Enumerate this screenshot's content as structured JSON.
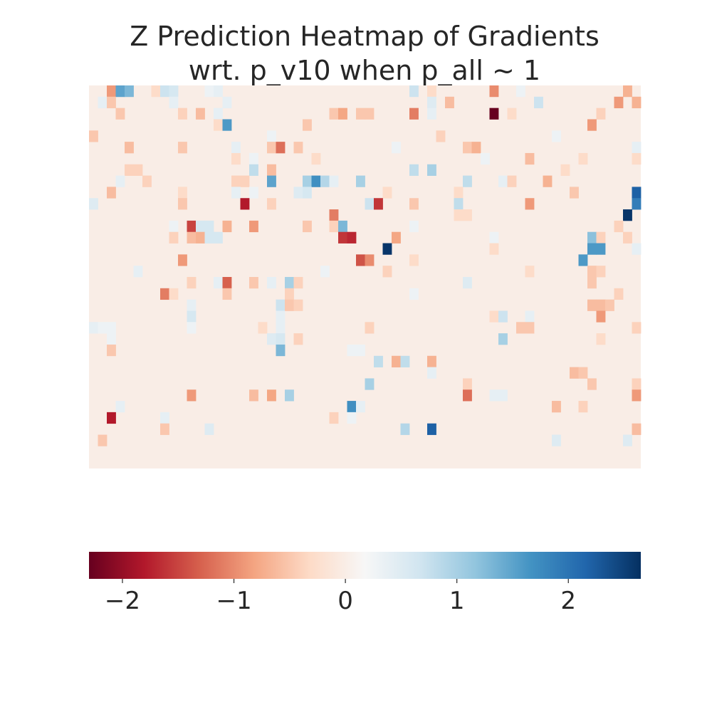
{
  "chart_data": {
    "type": "heatmap",
    "title": "Z Prediction Heatmap of Gradients\nwrt. p_v10 when p_all ~ 1",
    "title_lines": [
      "Z Prediction Heatmap of Gradients",
      "wrt. p_v10 when p_all ~ 1"
    ],
    "rows": 34,
    "cols": 62,
    "colormap": "RdBu",
    "vmin": -2.3,
    "vmax": 2.65,
    "colorbar": {
      "orientation": "horizontal",
      "location": "bottom",
      "ticks": [
        -2,
        -1,
        0,
        1,
        2
      ],
      "tick_labels": [
        "−2",
        "−1",
        "0",
        "1",
        "2"
      ]
    },
    "axis_ticks_visible": false,
    "cells": [
      {
        "r": 0,
        "c": 2,
        "v": -0.9
      },
      {
        "r": 0,
        "c": 3,
        "v": 1.5
      },
      {
        "r": 0,
        "c": 4,
        "v": 1.3
      },
      {
        "r": 0,
        "c": 7,
        "v": -0.3
      },
      {
        "r": 0,
        "c": 8,
        "v": 0.7
      },
      {
        "r": 0,
        "c": 9,
        "v": 0.6
      },
      {
        "r": 0,
        "c": 13,
        "v": 0.3
      },
      {
        "r": 0,
        "c": 14,
        "v": 0.4
      },
      {
        "r": 0,
        "c": 36,
        "v": 0.7
      },
      {
        "r": 0,
        "c": 38,
        "v": -0.3
      },
      {
        "r": 0,
        "c": 45,
        "v": -1.0
      },
      {
        "r": 0,
        "c": 48,
        "v": 0.3
      },
      {
        "r": 0,
        "c": 60,
        "v": -0.7
      },
      {
        "r": 1,
        "c": 1,
        "v": 0.4
      },
      {
        "r": 1,
        "c": 2,
        "v": -0.5
      },
      {
        "r": 1,
        "c": 9,
        "v": 0.4
      },
      {
        "r": 1,
        "c": 15,
        "v": 0.4
      },
      {
        "r": 1,
        "c": 38,
        "v": 0.5
      },
      {
        "r": 1,
        "c": 40,
        "v": -0.6
      },
      {
        "r": 1,
        "c": 50,
        "v": 0.7
      },
      {
        "r": 1,
        "c": 59,
        "v": -0.9
      },
      {
        "r": 1,
        "c": 61,
        "v": -0.7
      },
      {
        "r": 2,
        "c": 3,
        "v": -0.5
      },
      {
        "r": 2,
        "c": 10,
        "v": -0.4
      },
      {
        "r": 2,
        "c": 12,
        "v": -0.6
      },
      {
        "r": 2,
        "c": 14,
        "v": 0.4
      },
      {
        "r": 2,
        "c": 27,
        "v": -0.5
      },
      {
        "r": 2,
        "c": 28,
        "v": -0.8
      },
      {
        "r": 2,
        "c": 30,
        "v": -0.5
      },
      {
        "r": 2,
        "c": 31,
        "v": -0.5
      },
      {
        "r": 2,
        "c": 36,
        "v": -1.1
      },
      {
        "r": 2,
        "c": 38,
        "v": 0.4
      },
      {
        "r": 2,
        "c": 45,
        "v": -2.3
      },
      {
        "r": 2,
        "c": 47,
        "v": -0.3
      },
      {
        "r": 2,
        "c": 57,
        "v": -0.4
      },
      {
        "r": 3,
        "c": 14,
        "v": -0.3
      },
      {
        "r": 3,
        "c": 15,
        "v": 1.6
      },
      {
        "r": 3,
        "c": 24,
        "v": -0.5
      },
      {
        "r": 3,
        "c": 56,
        "v": -0.9
      },
      {
        "r": 4,
        "c": 0,
        "v": -0.5
      },
      {
        "r": 4,
        "c": 20,
        "v": 0.3
      },
      {
        "r": 4,
        "c": 39,
        "v": -0.4
      },
      {
        "r": 4,
        "c": 52,
        "v": 0.3
      },
      {
        "r": 5,
        "c": 4,
        "v": -0.6
      },
      {
        "r": 5,
        "c": 10,
        "v": -0.5
      },
      {
        "r": 5,
        "c": 16,
        "v": 0.4
      },
      {
        "r": 5,
        "c": 20,
        "v": -0.5
      },
      {
        "r": 5,
        "c": 21,
        "v": -1.2
      },
      {
        "r": 5,
        "c": 23,
        "v": -0.5
      },
      {
        "r": 5,
        "c": 34,
        "v": 0.3
      },
      {
        "r": 5,
        "c": 42,
        "v": -0.5
      },
      {
        "r": 5,
        "c": 43,
        "v": -0.7
      },
      {
        "r": 5,
        "c": 61,
        "v": 0.4
      },
      {
        "r": 6,
        "c": 16,
        "v": -0.3
      },
      {
        "r": 6,
        "c": 18,
        "v": 0.3
      },
      {
        "r": 6,
        "c": 25,
        "v": -0.3
      },
      {
        "r": 6,
        "c": 44,
        "v": 0.3
      },
      {
        "r": 6,
        "c": 49,
        "v": -0.6
      },
      {
        "r": 6,
        "c": 55,
        "v": -0.3
      },
      {
        "r": 6,
        "c": 61,
        "v": -0.3
      },
      {
        "r": 7,
        "c": 4,
        "v": -0.4
      },
      {
        "r": 7,
        "c": 5,
        "v": -0.4
      },
      {
        "r": 7,
        "c": 18,
        "v": 0.8
      },
      {
        "r": 7,
        "c": 20,
        "v": -0.6
      },
      {
        "r": 7,
        "c": 36,
        "v": 0.8
      },
      {
        "r": 7,
        "c": 38,
        "v": 1.0
      },
      {
        "r": 7,
        "c": 53,
        "v": -0.3
      },
      {
        "r": 8,
        "c": 3,
        "v": 0.4
      },
      {
        "r": 8,
        "c": 6,
        "v": -0.4
      },
      {
        "r": 8,
        "c": 16,
        "v": -0.4
      },
      {
        "r": 8,
        "c": 17,
        "v": -0.4
      },
      {
        "r": 8,
        "c": 20,
        "v": 1.5
      },
      {
        "r": 8,
        "c": 24,
        "v": 1.0
      },
      {
        "r": 8,
        "c": 25,
        "v": 1.7
      },
      {
        "r": 8,
        "c": 26,
        "v": 0.9
      },
      {
        "r": 8,
        "c": 27,
        "v": 0.4
      },
      {
        "r": 8,
        "c": 30,
        "v": 1.0
      },
      {
        "r": 8,
        "c": 42,
        "v": 0.8
      },
      {
        "r": 8,
        "c": 46,
        "v": 0.4
      },
      {
        "r": 8,
        "c": 47,
        "v": -0.4
      },
      {
        "r": 8,
        "c": 51,
        "v": -0.7
      },
      {
        "r": 9,
        "c": 2,
        "v": -0.6
      },
      {
        "r": 9,
        "c": 10,
        "v": -0.3
      },
      {
        "r": 9,
        "c": 16,
        "v": 0.4
      },
      {
        "r": 9,
        "c": 18,
        "v": 0.3
      },
      {
        "r": 9,
        "c": 23,
        "v": 0.5
      },
      {
        "r": 9,
        "c": 24,
        "v": 0.6
      },
      {
        "r": 9,
        "c": 33,
        "v": -0.3
      },
      {
        "r": 9,
        "c": 41,
        "v": -0.3
      },
      {
        "r": 9,
        "c": 54,
        "v": -0.5
      },
      {
        "r": 9,
        "c": 61,
        "v": 2.2
      },
      {
        "r": 10,
        "c": 0,
        "v": 0.5
      },
      {
        "r": 10,
        "c": 10,
        "v": -0.5
      },
      {
        "r": 10,
        "c": 17,
        "v": -1.8
      },
      {
        "r": 10,
        "c": 20,
        "v": -0.4
      },
      {
        "r": 10,
        "c": 31,
        "v": 0.7
      },
      {
        "r": 10,
        "c": 32,
        "v": -1.6
      },
      {
        "r": 10,
        "c": 36,
        "v": -0.5
      },
      {
        "r": 10,
        "c": 41,
        "v": 0.8
      },
      {
        "r": 10,
        "c": 49,
        "v": -0.9
      },
      {
        "r": 10,
        "c": 61,
        "v": 1.9
      },
      {
        "r": 11,
        "c": 27,
        "v": -1.1
      },
      {
        "r": 11,
        "c": 41,
        "v": -0.3
      },
      {
        "r": 11,
        "c": 42,
        "v": -0.3
      },
      {
        "r": 11,
        "c": 60,
        "v": 2.6
      },
      {
        "r": 12,
        "c": 9,
        "v": 0.3
      },
      {
        "r": 12,
        "c": 11,
        "v": -1.5
      },
      {
        "r": 12,
        "c": 12,
        "v": 0.6
      },
      {
        "r": 12,
        "c": 13,
        "v": 0.6
      },
      {
        "r": 12,
        "c": 15,
        "v": -0.7
      },
      {
        "r": 12,
        "c": 18,
        "v": -0.9
      },
      {
        "r": 12,
        "c": 24,
        "v": -0.5
      },
      {
        "r": 12,
        "c": 27,
        "v": -0.4
      },
      {
        "r": 12,
        "c": 28,
        "v": 1.3
      },
      {
        "r": 12,
        "c": 36,
        "v": 0.3
      },
      {
        "r": 12,
        "c": 59,
        "v": -0.4
      },
      {
        "r": 13,
        "c": 9,
        "v": -0.4
      },
      {
        "r": 13,
        "c": 11,
        "v": -0.6
      },
      {
        "r": 13,
        "c": 12,
        "v": -0.7
      },
      {
        "r": 13,
        "c": 13,
        "v": 0.6
      },
      {
        "r": 13,
        "c": 14,
        "v": 0.6
      },
      {
        "r": 13,
        "c": 28,
        "v": -1.6
      },
      {
        "r": 13,
        "c": 29,
        "v": -1.7
      },
      {
        "r": 13,
        "c": 34,
        "v": -0.8
      },
      {
        "r": 13,
        "c": 45,
        "v": 0.3
      },
      {
        "r": 13,
        "c": 56,
        "v": 1.2
      },
      {
        "r": 13,
        "c": 57,
        "v": -0.4
      },
      {
        "r": 13,
        "c": 60,
        "v": -0.4
      },
      {
        "r": 14,
        "c": 33,
        "v": 2.6
      },
      {
        "r": 14,
        "c": 45,
        "v": -0.3
      },
      {
        "r": 14,
        "c": 56,
        "v": 1.6
      },
      {
        "r": 14,
        "c": 57,
        "v": 1.6
      },
      {
        "r": 14,
        "c": 61,
        "v": 0.4
      },
      {
        "r": 15,
        "c": 10,
        "v": -0.9
      },
      {
        "r": 15,
        "c": 30,
        "v": -1.4
      },
      {
        "r": 15,
        "c": 31,
        "v": -1.0
      },
      {
        "r": 15,
        "c": 36,
        "v": -0.3
      },
      {
        "r": 15,
        "c": 55,
        "v": 1.6
      },
      {
        "r": 16,
        "c": 5,
        "v": 0.4
      },
      {
        "r": 16,
        "c": 26,
        "v": 0.3
      },
      {
        "r": 16,
        "c": 33,
        "v": -0.4
      },
      {
        "r": 16,
        "c": 49,
        "v": -0.3
      },
      {
        "r": 16,
        "c": 56,
        "v": -0.5
      },
      {
        "r": 16,
        "c": 57,
        "v": -0.4
      },
      {
        "r": 17,
        "c": 11,
        "v": -0.4
      },
      {
        "r": 17,
        "c": 14,
        "v": 0.4
      },
      {
        "r": 17,
        "c": 15,
        "v": -1.3
      },
      {
        "r": 17,
        "c": 18,
        "v": -0.5
      },
      {
        "r": 17,
        "c": 20,
        "v": 0.4
      },
      {
        "r": 17,
        "c": 22,
        "v": 1.0
      },
      {
        "r": 17,
        "c": 23,
        "v": -0.4
      },
      {
        "r": 17,
        "c": 42,
        "v": 0.5
      },
      {
        "r": 17,
        "c": 56,
        "v": -0.5
      },
      {
        "r": 18,
        "c": 8,
        "v": -1.1
      },
      {
        "r": 18,
        "c": 9,
        "v": -0.3
      },
      {
        "r": 18,
        "c": 15,
        "v": -0.5
      },
      {
        "r": 18,
        "c": 22,
        "v": -0.4
      },
      {
        "r": 18,
        "c": 36,
        "v": 0.3
      },
      {
        "r": 18,
        "c": 59,
        "v": -0.4
      },
      {
        "r": 19,
        "c": 11,
        "v": 0.4
      },
      {
        "r": 19,
        "c": 21,
        "v": 0.7
      },
      {
        "r": 19,
        "c": 22,
        "v": -0.5
      },
      {
        "r": 19,
        "c": 23,
        "v": -0.4
      },
      {
        "r": 19,
        "c": 56,
        "v": -0.6
      },
      {
        "r": 19,
        "c": 57,
        "v": -0.6
      },
      {
        "r": 19,
        "c": 58,
        "v": -0.5
      },
      {
        "r": 20,
        "c": 11,
        "v": 0.6
      },
      {
        "r": 20,
        "c": 21,
        "v": 0.4
      },
      {
        "r": 20,
        "c": 45,
        "v": -0.3
      },
      {
        "r": 20,
        "c": 46,
        "v": 0.7
      },
      {
        "r": 20,
        "c": 49,
        "v": 0.4
      },
      {
        "r": 20,
        "c": 57,
        "v": -0.9
      },
      {
        "r": 21,
        "c": 0,
        "v": 0.4
      },
      {
        "r": 21,
        "c": 1,
        "v": 0.3
      },
      {
        "r": 21,
        "c": 2,
        "v": 0.3
      },
      {
        "r": 21,
        "c": 11,
        "v": 0.3
      },
      {
        "r": 21,
        "c": 19,
        "v": -0.3
      },
      {
        "r": 21,
        "c": 21,
        "v": 0.4
      },
      {
        "r": 21,
        "c": 31,
        "v": -0.4
      },
      {
        "r": 21,
        "c": 48,
        "v": -0.5
      },
      {
        "r": 21,
        "c": 49,
        "v": -0.5
      },
      {
        "r": 21,
        "c": 61,
        "v": -0.4
      },
      {
        "r": 22,
        "c": 2,
        "v": 0.3
      },
      {
        "r": 22,
        "c": 20,
        "v": 0.5
      },
      {
        "r": 22,
        "c": 21,
        "v": 0.6
      },
      {
        "r": 22,
        "c": 23,
        "v": -0.4
      },
      {
        "r": 22,
        "c": 46,
        "v": 1.0
      },
      {
        "r": 22,
        "c": 57,
        "v": -0.3
      },
      {
        "r": 23,
        "c": 2,
        "v": -0.5
      },
      {
        "r": 23,
        "c": 21,
        "v": 1.3
      },
      {
        "r": 23,
        "c": 29,
        "v": 0.3
      },
      {
        "r": 23,
        "c": 30,
        "v": 0.3
      },
      {
        "r": 24,
        "c": 32,
        "v": 0.8
      },
      {
        "r": 24,
        "c": 34,
        "v": -0.7
      },
      {
        "r": 24,
        "c": 35,
        "v": 0.8
      },
      {
        "r": 24,
        "c": 38,
        "v": -0.7
      },
      {
        "r": 25,
        "c": 38,
        "v": 0.4
      },
      {
        "r": 25,
        "c": 54,
        "v": -0.6
      },
      {
        "r": 25,
        "c": 55,
        "v": -0.5
      },
      {
        "r": 26,
        "c": 31,
        "v": 1.0
      },
      {
        "r": 26,
        "c": 42,
        "v": -0.4
      },
      {
        "r": 26,
        "c": 56,
        "v": -0.5
      },
      {
        "r": 26,
        "c": 61,
        "v": -0.4
      },
      {
        "r": 27,
        "c": 11,
        "v": -0.9
      },
      {
        "r": 27,
        "c": 18,
        "v": -0.6
      },
      {
        "r": 27,
        "c": 20,
        "v": -0.8
      },
      {
        "r": 27,
        "c": 22,
        "v": 1.0
      },
      {
        "r": 27,
        "c": 42,
        "v": -1.2
      },
      {
        "r": 27,
        "c": 45,
        "v": 0.4
      },
      {
        "r": 27,
        "c": 46,
        "v": 0.4
      },
      {
        "r": 27,
        "c": 61,
        "v": -0.9
      },
      {
        "r": 28,
        "c": 3,
        "v": 0.4
      },
      {
        "r": 28,
        "c": 29,
        "v": 1.7
      },
      {
        "r": 28,
        "c": 30,
        "v": 0.4
      },
      {
        "r": 28,
        "c": 52,
        "v": -0.6
      },
      {
        "r": 28,
        "c": 55,
        "v": -0.4
      },
      {
        "r": 29,
        "c": 2,
        "v": -1.8
      },
      {
        "r": 29,
        "c": 8,
        "v": 0.4
      },
      {
        "r": 29,
        "c": 27,
        "v": -0.4
      },
      {
        "r": 29,
        "c": 29,
        "v": 0.3
      },
      {
        "r": 30,
        "c": 8,
        "v": -0.5
      },
      {
        "r": 30,
        "c": 13,
        "v": 0.5
      },
      {
        "r": 30,
        "c": 35,
        "v": 0.9
      },
      {
        "r": 30,
        "c": 38,
        "v": 2.2
      },
      {
        "r": 30,
        "c": 61,
        "v": -0.6
      },
      {
        "r": 31,
        "c": 1,
        "v": -0.5
      },
      {
        "r": 31,
        "c": 52,
        "v": 0.5
      },
      {
        "r": 31,
        "c": 60,
        "v": 0.5
      }
    ]
  }
}
